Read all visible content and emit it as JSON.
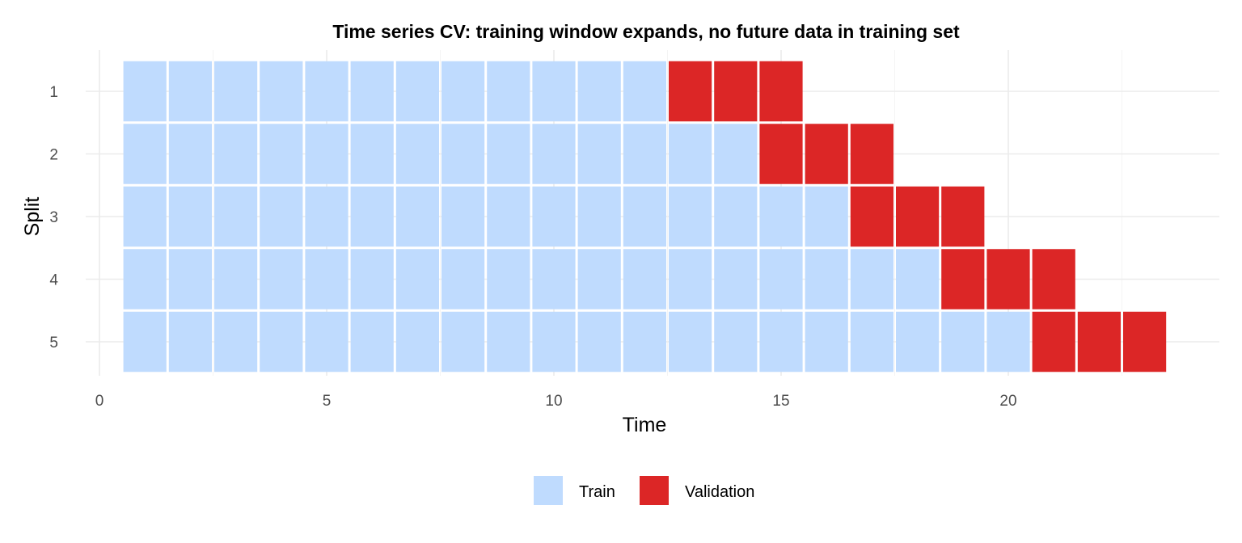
{
  "chart_data": {
    "type": "heatmap",
    "title": "Time series CV: training window expands, no future data in training set",
    "xlabel": "Time",
    "ylabel": "Split",
    "xlim": [
      0,
      24
    ],
    "x_ticks": [
      0,
      5,
      10,
      15,
      20
    ],
    "y_categories": [
      "1",
      "2",
      "3",
      "4",
      "5"
    ],
    "grid": true,
    "legend_position": "bottom",
    "colors": {
      "Train": "#bfdbfe",
      "Validation": "#dc2626"
    },
    "legend": [
      "Train",
      "Validation"
    ],
    "splits": [
      {
        "split": "1",
        "train": [
          1,
          12
        ],
        "validation": [
          13,
          15
        ]
      },
      {
        "split": "2",
        "train": [
          1,
          14
        ],
        "validation": [
          15,
          17
        ]
      },
      {
        "split": "3",
        "train": [
          1,
          16
        ],
        "validation": [
          17,
          19
        ]
      },
      {
        "split": "4",
        "train": [
          1,
          18
        ],
        "validation": [
          19,
          21
        ]
      },
      {
        "split": "5",
        "train": [
          1,
          20
        ],
        "validation": [
          21,
          23
        ]
      }
    ]
  }
}
